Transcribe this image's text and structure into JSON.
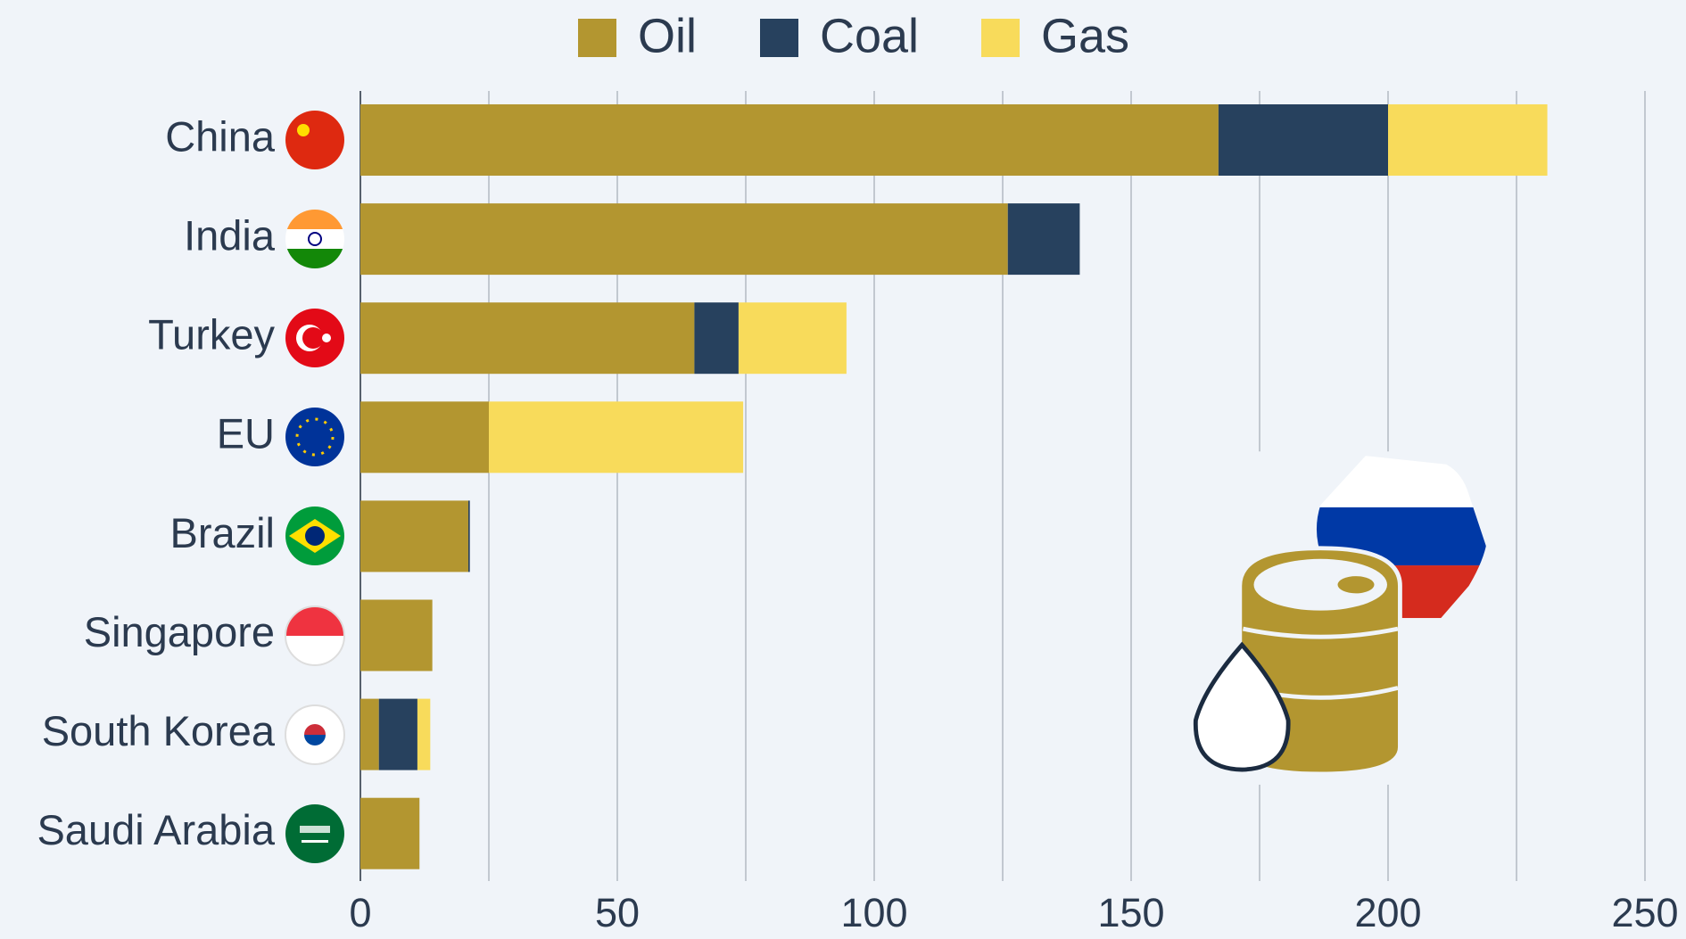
{
  "chart_data": {
    "type": "stacked_bar_horizontal",
    "categories": [
      "China",
      "India",
      "Turkey",
      "EU",
      "Brazil",
      "Singapore",
      "South Korea",
      "Saudi Arabia"
    ],
    "series": [
      {
        "name": "Oil",
        "color": "#b39630",
        "values": [
          167,
          126,
          65,
          25,
          21,
          14,
          3.6,
          11.5
        ]
      },
      {
        "name": "Coal",
        "color": "#27415e",
        "values": [
          33,
          14,
          8.6,
          0,
          0.3,
          0,
          7.5,
          0
        ]
      },
      {
        "name": "Gas",
        "color": "#f8db5b",
        "values": [
          31,
          0,
          21,
          49.5,
          0,
          0,
          2.5,
          0
        ]
      }
    ],
    "xlim": [
      0,
      250
    ],
    "xticks": [
      0,
      {
        "value": 25,
        "label": null
      },
      50,
      {
        "value": 75,
        "label": null
      },
      100,
      {
        "value": 125,
        "label": null
      },
      150,
      {
        "value": 175,
        "label": null
      },
      200,
      {
        "value": 225,
        "label": null
      },
      250
    ],
    "grid": true
  }
}
